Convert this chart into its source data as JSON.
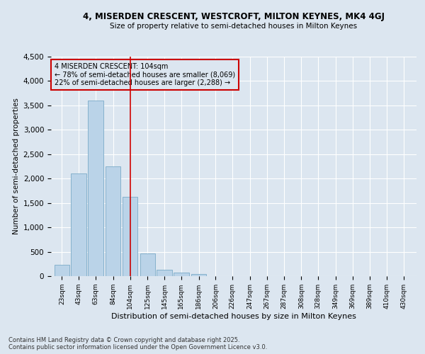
{
  "title1": "4, MISERDEN CRESCENT, WESTCROFT, MILTON KEYNES, MK4 4GJ",
  "title2": "Size of property relative to semi-detached houses in Milton Keynes",
  "xlabel": "Distribution of semi-detached houses by size in Milton Keynes",
  "ylabel": "Number of semi-detached properties",
  "annotation_title": "4 MISERDEN CRESCENT: 104sqm",
  "annotation_line1": "← 78% of semi-detached houses are smaller (8,069)",
  "annotation_line2": "22% of semi-detached houses are larger (2,288) →",
  "footer1": "Contains HM Land Registry data © Crown copyright and database right 2025.",
  "footer2": "Contains public sector information licensed under the Open Government Licence v3.0.",
  "property_size": 104,
  "categories": [
    23,
    43,
    63,
    84,
    104,
    125,
    145,
    165,
    186,
    206,
    226,
    247,
    267,
    287,
    308,
    328,
    349,
    369,
    389,
    410,
    430
  ],
  "values": [
    230,
    2100,
    3600,
    2250,
    1630,
    460,
    130,
    70,
    50,
    0,
    0,
    0,
    0,
    0,
    0,
    0,
    0,
    0,
    0,
    0,
    0
  ],
  "bar_color": "#bad3e8",
  "bar_edge_color": "#7aaac8",
  "highlight_color": "#cc0000",
  "background_color": "#dce6f0",
  "grid_color": "#ffffff",
  "ylim": [
    0,
    4500
  ],
  "yticks": [
    0,
    500,
    1000,
    1500,
    2000,
    2500,
    3000,
    3500,
    4000,
    4500
  ]
}
